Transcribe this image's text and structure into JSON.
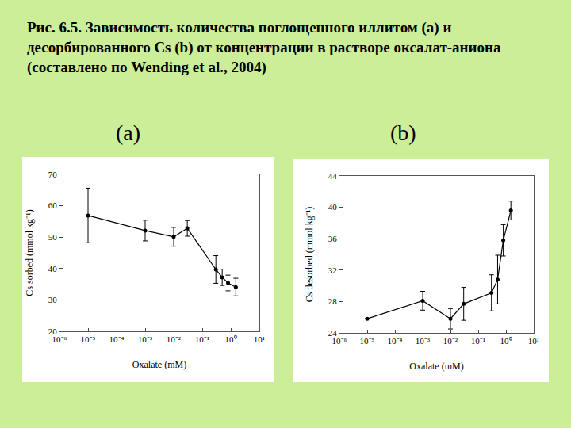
{
  "caption": "Рис. 6.5. Зависимость количества поглощенного иллитом (а) и десорбированного Cs (b) от концентрации в растворе оксалат-аниона (составлено по Wending et al., 2004)",
  "chart_data": [
    {
      "type": "line",
      "title": "(a)",
      "x_label": "Oxalate (mM)",
      "y_label": "Cs sorbed (mmol kg⁻¹)",
      "x": [
        1e-05,
        0.001,
        0.01,
        0.03,
        0.3,
        0.5,
        0.8,
        1.5
      ],
      "values": [
        56.9,
        52.1,
        50.1,
        52.8,
        39.7,
        37.2,
        35.4,
        34.1
      ],
      "errors": [
        8.7,
        3.3,
        3.0,
        2.5,
        4.4,
        2.6,
        2.5,
        2.8
      ],
      "color": "#000000",
      "marker": "circle",
      "log": "x",
      "xlim": [
        1e-06,
        10
      ],
      "xticks": [
        {
          "value": 1e-06,
          "label": "10⁻⁶"
        },
        {
          "value": 1e-05,
          "label": "10⁻⁵"
        },
        {
          "value": 0.0001,
          "label": "10⁻⁴"
        },
        {
          "value": 0.001,
          "label": "10⁻³"
        },
        {
          "value": 0.01,
          "label": "10⁻²"
        },
        {
          "value": 0.1,
          "label": "10⁻¹"
        },
        {
          "value": 1,
          "label": "10⁰"
        },
        {
          "value": 10,
          "label": "10¹"
        }
      ],
      "ylim": [
        20,
        70
      ],
      "yticks": [
        20,
        30,
        40,
        50,
        60,
        70
      ],
      "grid": false
    },
    {
      "type": "line",
      "title": "(b)",
      "x_label": "Oxalate (mM)",
      "y_label": "Cs desorbed (mmol kg⁻¹)",
      "x": [
        1e-05,
        0.001,
        0.01,
        0.03,
        0.3,
        0.5,
        0.8,
        1.5
      ],
      "values": [
        25.8,
        28.1,
        25.8,
        27.7,
        29.1,
        30.8,
        35.8,
        39.6
      ],
      "errors": [
        0,
        1.2,
        1.3,
        2.1,
        2.3,
        3.1,
        2.0,
        1.2
      ],
      "color": "#000000",
      "marker": "circle",
      "log": "x",
      "xlim": [
        1e-06,
        10
      ],
      "xticks": [
        {
          "value": 1e-06,
          "label": "10⁻⁶"
        },
        {
          "value": 1e-05,
          "label": "10⁻⁵"
        },
        {
          "value": 0.0001,
          "label": "10⁻⁴"
        },
        {
          "value": 0.001,
          "label": "10⁻³"
        },
        {
          "value": 0.01,
          "label": "10⁻²"
        },
        {
          "value": 0.1,
          "label": "10⁻¹"
        },
        {
          "value": 1,
          "label": "10⁰"
        },
        {
          "value": 10,
          "label": "10¹"
        }
      ],
      "ylim": [
        24,
        44
      ],
      "yticks": [
        24,
        28,
        32,
        36,
        40,
        44
      ],
      "grid": false
    }
  ]
}
